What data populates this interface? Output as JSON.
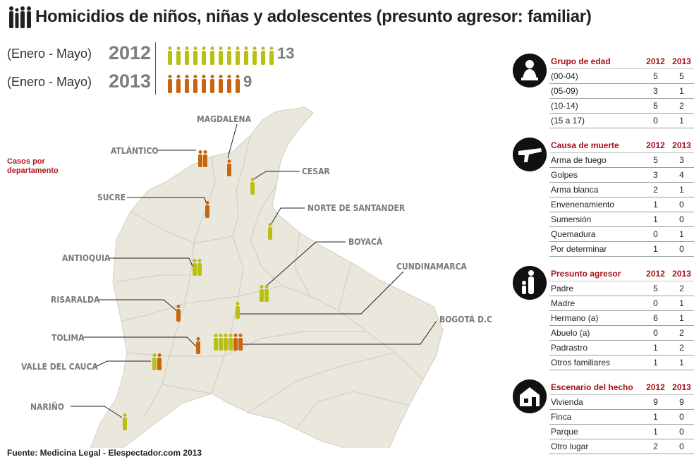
{
  "title": "Homicidios de niños, niñas y adolescentes (presunto agresor: familiar)",
  "colors": {
    "y2012": "#b9c011",
    "y2013": "#c8650f",
    "accent": "#a5121c",
    "map": "#eae7dc"
  },
  "totals": [
    {
      "period": "(Enero - Mayo)",
      "year": "2012",
      "count": 13
    },
    {
      "period": "(Enero - Mayo)",
      "year": "2013",
      "count": 9
    }
  ],
  "map": {
    "note": "Casos por departamento",
    "departments": [
      {
        "name": "MAGDALENA",
        "c2012": 0,
        "c2013": 1
      },
      {
        "name": "ATLÁNTICO",
        "c2012": 0,
        "c2013": 2
      },
      {
        "name": "CESAR",
        "c2012": 1,
        "c2013": 0
      },
      {
        "name": "SUCRE",
        "c2012": 0,
        "c2013": 1
      },
      {
        "name": "NORTE DE SANTANDER",
        "c2012": 1,
        "c2013": 0
      },
      {
        "name": "BOYACÁ",
        "c2012": 2,
        "c2013": 0
      },
      {
        "name": "ANTIOQUIA",
        "c2012": 2,
        "c2013": 0
      },
      {
        "name": "CUNDINAMARCA",
        "c2012": 1,
        "c2013": 0
      },
      {
        "name": "RISARALDA",
        "c2012": 0,
        "c2013": 1
      },
      {
        "name": "BOGOTÁ D.C",
        "c2012": 4,
        "c2013": 2
      },
      {
        "name": "TOLIMA",
        "c2012": 0,
        "c2013": 1
      },
      {
        "name": "VALLE DEL CAUCA",
        "c2012": 1,
        "c2013": 1
      },
      {
        "name": "NARIÑO",
        "c2012": 1,
        "c2013": 0
      }
    ]
  },
  "tables": [
    {
      "icon": "child-icon",
      "title": "Grupo de edad",
      "col1": "2012",
      "col2": "2013",
      "rows": [
        [
          "(00-04)",
          "5",
          "5"
        ],
        [
          "(05-09)",
          "3",
          "1"
        ],
        [
          "(10-14)",
          "5",
          "2"
        ],
        [
          "(15 a 17)",
          "0",
          "1"
        ]
      ]
    },
    {
      "icon": "gun-icon",
      "title": "Causa de muerte",
      "col1": "2012",
      "col2": "2013",
      "rows": [
        [
          "Arma de fuego",
          "5",
          "3"
        ],
        [
          "Golpes",
          "3",
          "4"
        ],
        [
          "Arma blanca",
          "2",
          "1"
        ],
        [
          "Envenenamiento",
          "1",
          "0"
        ],
        [
          "Sumersión",
          "1",
          "0"
        ],
        [
          "Quemadura",
          "0",
          "1"
        ],
        [
          "Por determinar",
          "1",
          "0"
        ]
      ]
    },
    {
      "icon": "adult-child-icon",
      "title": "Presunto agresor",
      "col1": "2012",
      "col2": "2013",
      "rows": [
        [
          "Padre",
          "5",
          "2"
        ],
        [
          "Madre",
          "0",
          "1"
        ],
        [
          "Hermano (a)",
          "6",
          "1"
        ],
        [
          "Abuelo (a)",
          "0",
          "2"
        ],
        [
          "Padrastro",
          "1",
          "2"
        ],
        [
          "Otros familiares",
          "1",
          "1"
        ]
      ]
    },
    {
      "icon": "house-icon",
      "title": "Escenario del hecho",
      "col1": "2012",
      "col2": "2013",
      "rows": [
        [
          "Vivienda",
          "9",
          "9"
        ],
        [
          "Finca",
          "1",
          "0"
        ],
        [
          "Parque",
          "1",
          "0"
        ],
        [
          "Otro lugar",
          "2",
          "0"
        ]
      ]
    }
  ],
  "source": "Fuente: Medicina Legal - Elespectador.com 2013"
}
